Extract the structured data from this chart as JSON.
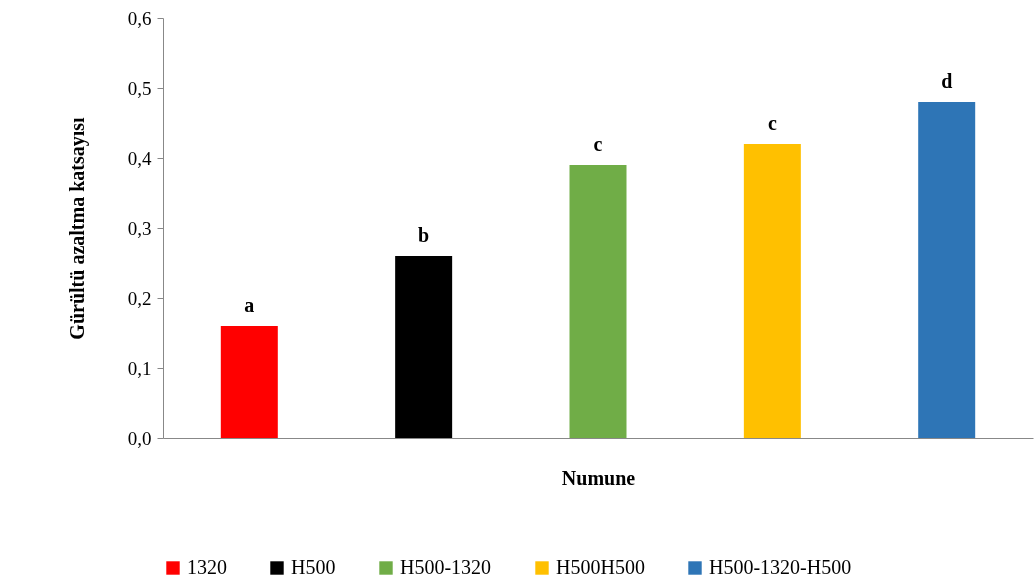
{
  "chart_data": {
    "type": "bar",
    "xlabel": "Numune",
    "ylabel": "Gürültü azaltma katsayısı",
    "categories": [
      null,
      null,
      null,
      null,
      null
    ],
    "series": [
      {
        "name": "1320",
        "color": "#ff0000",
        "values": [
          0.16,
          null,
          null,
          null,
          null
        ]
      },
      {
        "name": "H500",
        "color": "#000000",
        "values": [
          null,
          0.26,
          null,
          null,
          null
        ]
      },
      {
        "name": "H500-1320",
        "color": "#70ad47",
        "values": [
          null,
          null,
          0.39,
          null,
          null
        ]
      },
      {
        "name": "H500H500",
        "color": "#ffc000",
        "values": [
          null,
          null,
          null,
          0.42,
          null
        ]
      },
      {
        "name": "H500-1320-H500",
        "color": "#2e75b6",
        "values": [
          null,
          null,
          null,
          null,
          0.48
        ]
      }
    ],
    "ylim": [
      0,
      0.6
    ],
    "yticks": [
      {
        "value": 0,
        "label": "0,0"
      },
      {
        "value": 0.1,
        "label": "0,1"
      },
      {
        "value": 0.2,
        "label": "0,2"
      },
      {
        "value": 0.3,
        "label": "0,3"
      },
      {
        "value": 0.4,
        "label": "0,4"
      },
      {
        "value": 0.5,
        "label": "0,5"
      },
      {
        "value": 0.6,
        "label": "0,6"
      }
    ],
    "annotations": [
      {
        "text": "a",
        "y": 0.16
      },
      {
        "text": "b",
        "y": 0.26
      },
      {
        "text": "c",
        "y": 0.39
      },
      {
        "text": "c",
        "y": 0.42
      },
      {
        "text": "d",
        "y": 0.48
      }
    ],
    "grid": false,
    "legend": "bottom"
  }
}
